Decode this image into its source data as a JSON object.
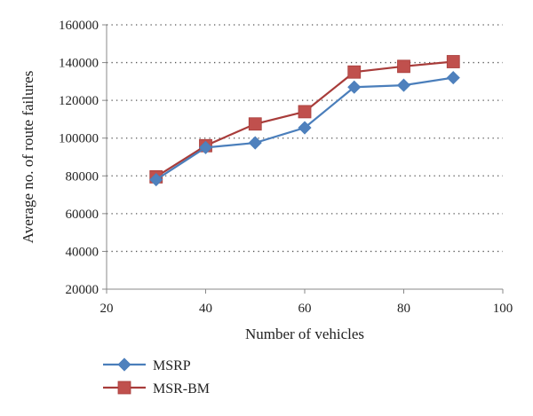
{
  "chart_data": {
    "type": "line",
    "xlabel": "Number of vehicles",
    "ylabel": "Average no. of route failures",
    "xlim": [
      20,
      100
    ],
    "ylim": [
      20000,
      160000
    ],
    "x_ticks": [
      20,
      40,
      60,
      80,
      100
    ],
    "y_ticks": [
      20000,
      40000,
      60000,
      80000,
      100000,
      120000,
      140000,
      160000
    ],
    "grid": "horizontal dotted",
    "legend_position": "bottom-left",
    "x": [
      30,
      40,
      50,
      60,
      70,
      80,
      90
    ],
    "series": [
      {
        "name": "MSRP",
        "marker": "diamond",
        "color": "#4a7ebb",
        "marker_color": "#4f81bd",
        "values": [
          78000,
          95000,
          97500,
          105500,
          127000,
          128000,
          132000
        ]
      },
      {
        "name": "MSR-BM",
        "marker": "square",
        "color": "#a83c3a",
        "marker_color": "#c0504d",
        "values": [
          79500,
          96000,
          107500,
          114000,
          135000,
          138000,
          140500
        ]
      }
    ]
  }
}
